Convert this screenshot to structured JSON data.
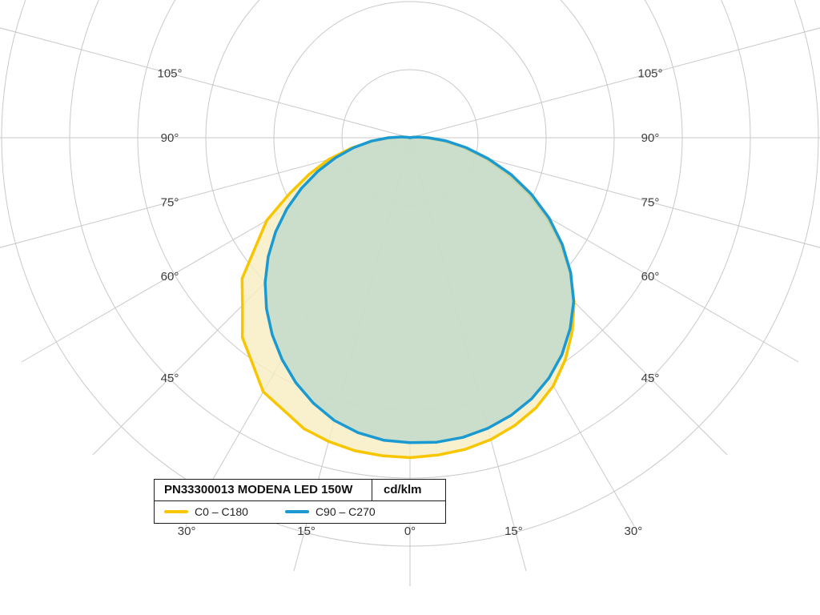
{
  "chart_data": {
    "type": "line",
    "coordinate_system": "polar",
    "title": "PN33300013 MODENA LED 150W",
    "unit": "cd/klm",
    "angle_zero": "nadir (0° points straight down)",
    "grid": true,
    "legend_position": "bottom-left box",
    "angle_ticks": [
      {
        "value": 0,
        "label": "0°"
      },
      {
        "value": 15,
        "label": "15°"
      },
      {
        "value": 30,
        "label": "30°"
      },
      {
        "value": 45,
        "label": "45°"
      },
      {
        "value": 60,
        "label": "60°"
      },
      {
        "value": 75,
        "label": "75°"
      },
      {
        "value": 90,
        "label": "90°"
      },
      {
        "value": 105,
        "label": "105°"
      }
    ],
    "radial_ticks": [
      100,
      200,
      300,
      400,
      500,
      600
    ],
    "radial_tick_labels_visible": false,
    "angles_deg": [
      -105,
      -100,
      -95,
      -90,
      -85,
      -80,
      -75,
      -70,
      -65,
      -60,
      -55,
      -50,
      -45,
      -40,
      -35,
      -30,
      -25,
      -20,
      -15,
      -10,
      -5,
      0,
      5,
      10,
      15,
      20,
      25,
      30,
      35,
      40,
      45,
      50,
      55,
      60,
      65,
      70,
      75,
      80,
      85,
      90,
      95,
      100,
      105
    ],
    "series": [
      {
        "name": "C0 – C180",
        "color": "#F7C600",
        "fill": "#F7ECC0",
        "fill_opacity": 0.8,
        "values": [
          0,
          3,
          11,
          28,
          54,
          88,
          124,
          158,
          196,
          243,
          276,
          322,
          348,
          383,
          404,
          431,
          441,
          455,
          462,
          467,
          469,
          470,
          468,
          465,
          459,
          450,
          438,
          421,
          398,
          371,
          341,
          307,
          270,
          231,
          191,
          151,
          113,
          78,
          47,
          22,
          8,
          2,
          0
        ]
      },
      {
        "name": "C90 – C270",
        "color": "#1B9AD2",
        "fill": "#BED8CC",
        "fill_opacity": 0.78,
        "values": [
          0,
          4,
          13,
          32,
          57,
          84,
          113,
          144,
          176,
          209,
          241,
          272,
          301,
          328,
          353,
          376,
          397,
          415,
          430,
          440,
          446,
          448,
          449,
          447,
          442,
          434,
          423,
          408,
          389,
          366,
          340,
          308,
          273,
          236,
          197,
          158,
          119,
          84,
          53,
          27,
          12,
          4,
          0
        ]
      }
    ],
    "grid_color": "#c9c9c9",
    "label_color": "#3c3c3c"
  }
}
